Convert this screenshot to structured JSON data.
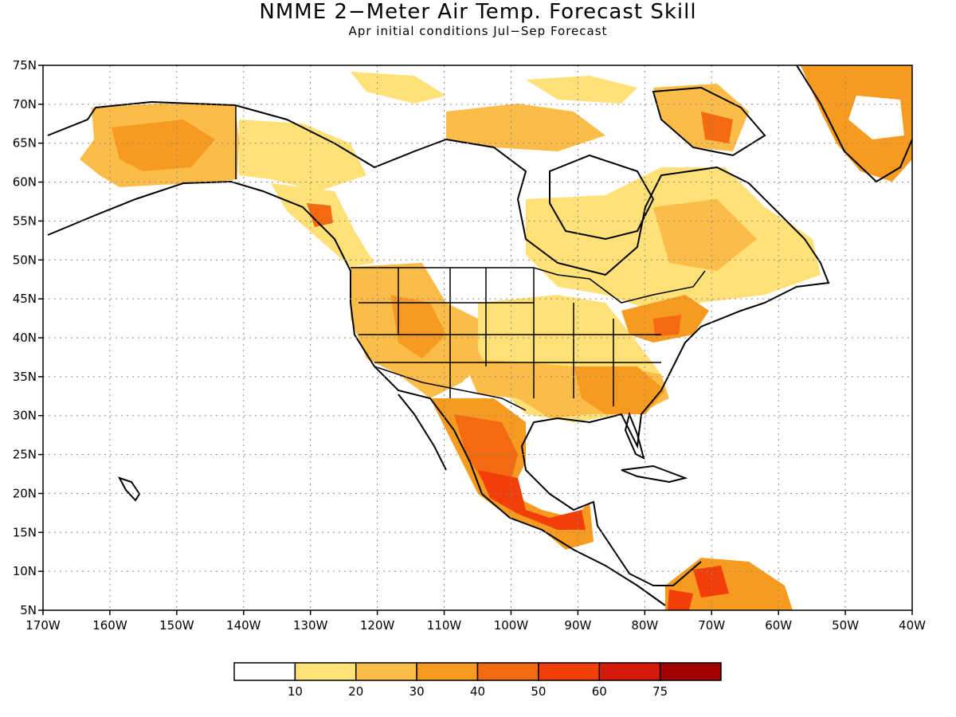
{
  "title": "NMME 2−Meter Air Temp. Forecast Skill",
  "subtitle": "Apr initial conditions  Jul−Sep Forecast",
  "map": {
    "lon_labels": [
      "170W",
      "160W",
      "150W",
      "140W",
      "130W",
      "120W",
      "110W",
      "100W",
      "90W",
      "80W",
      "70W",
      "60W",
      "50W",
      "40W"
    ],
    "lat_labels": [
      "75N",
      "70N",
      "65N",
      "60N",
      "55N",
      "50N",
      "45N",
      "40N",
      "35N",
      "30N",
      "25N",
      "20N",
      "15N",
      "10N",
      "5N"
    ],
    "lon_range": [
      -170,
      -40
    ],
    "lat_range": [
      5,
      75
    ],
    "grid": "dotted"
  },
  "legend": {
    "labels": [
      "10",
      "20",
      "30",
      "40",
      "50",
      "60",
      "75"
    ],
    "colors": [
      "#ffffff",
      "#ffe178",
      "#fbbc48",
      "#f79a20",
      "#f46a10",
      "#f23e08",
      "#d51a0c",
      "#a00000"
    ]
  },
  "colors": {
    "land_outline": "#000000"
  }
}
